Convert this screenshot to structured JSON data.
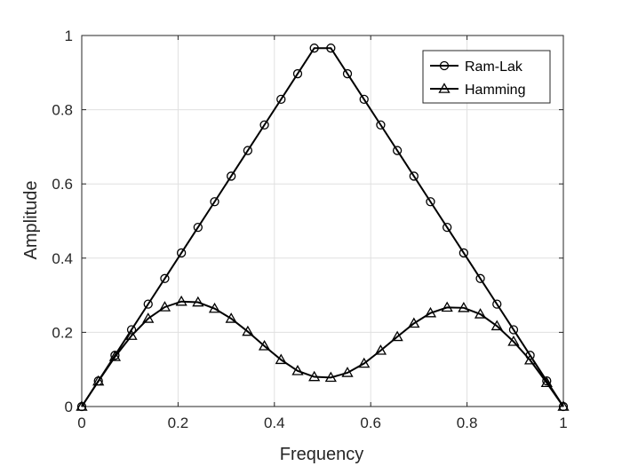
{
  "chart_data": {
    "type": "line",
    "xlabel": "Frequency",
    "ylabel": "Amplitude",
    "xlim": [
      0,
      1
    ],
    "ylim": [
      0,
      1
    ],
    "xticks": [
      "0",
      "0.2",
      "0.4",
      "0.6",
      "0.8",
      "1"
    ],
    "yticks": [
      "0",
      "0.2",
      "0.4",
      "0.6",
      "0.8",
      "1"
    ],
    "grid": true,
    "legend_position": "top-right",
    "colors": {
      "line": "#000000",
      "grid": "#e0e0e0",
      "axis": "#262626"
    },
    "series": [
      {
        "name": "Ram-Lak",
        "marker": "circle",
        "x": [
          0.0,
          0.0345,
          0.069,
          0.1034,
          0.1379,
          0.1724,
          0.2069,
          0.2414,
          0.2759,
          0.3103,
          0.3448,
          0.3793,
          0.4138,
          0.4483,
          0.4828,
          0.5172,
          0.5517,
          0.5862,
          0.6207,
          0.6552,
          0.6897,
          0.7241,
          0.7586,
          0.7931,
          0.8276,
          0.8621,
          0.8966,
          0.931,
          0.9655,
          1.0
        ],
        "y": [
          0.0,
          0.069,
          0.138,
          0.207,
          0.276,
          0.345,
          0.414,
          0.483,
          0.552,
          0.621,
          0.69,
          0.759,
          0.828,
          0.897,
          0.966,
          0.966,
          0.897,
          0.828,
          0.759,
          0.69,
          0.621,
          0.552,
          0.483,
          0.414,
          0.345,
          0.276,
          0.207,
          0.138,
          0.069,
          0.0
        ]
      },
      {
        "name": "Hamming",
        "marker": "triangle",
        "x": [
          0.0,
          0.0345,
          0.069,
          0.1034,
          0.1379,
          0.1724,
          0.2069,
          0.2414,
          0.2759,
          0.3103,
          0.3448,
          0.3793,
          0.4138,
          0.4483,
          0.4828,
          0.5172,
          0.5517,
          0.5862,
          0.6207,
          0.6552,
          0.6897,
          0.7241,
          0.7586,
          0.7931,
          0.8276,
          0.8621,
          0.8966,
          0.931,
          0.9655,
          1.0
        ],
        "y": [
          0.0,
          0.068,
          0.134,
          0.191,
          0.237,
          0.268,
          0.283,
          0.281,
          0.264,
          0.237,
          0.202,
          0.163,
          0.126,
          0.096,
          0.08,
          0.078,
          0.091,
          0.116,
          0.151,
          0.188,
          0.224,
          0.252,
          0.267,
          0.266,
          0.249,
          0.217,
          0.175,
          0.125,
          0.064,
          0.0
        ]
      }
    ]
  }
}
